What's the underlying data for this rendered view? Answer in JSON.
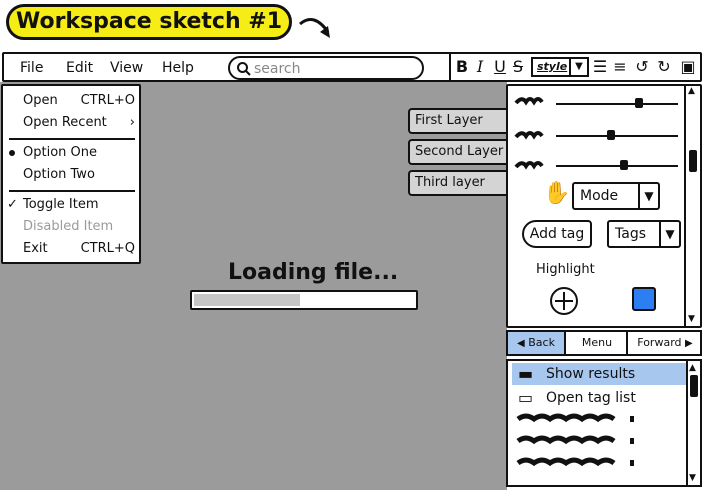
{
  "title": "Workspace sketch #1",
  "menu": {
    "items": [
      "File",
      "Edit",
      "View",
      "Help"
    ],
    "search_placeholder": "search"
  },
  "toolbar": {
    "style_label": "style",
    "icons": [
      "bold-icon",
      "italic-icon",
      "underline-icon",
      "strikethrough-icon",
      "style-dropdown",
      "bulleted-list-icon",
      "numbered-list-icon",
      "undo-icon",
      "redo-icon",
      "image-icon"
    ]
  },
  "file_menu": {
    "items": [
      {
        "label": "Open",
        "shortcut": "CTRL+O"
      },
      {
        "label": "Open Recent",
        "shortcut": "›"
      },
      {
        "label": "Option One",
        "shortcut": ""
      },
      {
        "label": "Option Two",
        "shortcut": ""
      },
      {
        "label": "Toggle Item",
        "shortcut": ""
      },
      {
        "label": "Disabled Item",
        "shortcut": ""
      },
      {
        "label": "Exit",
        "shortcut": "CTRL+Q"
      }
    ]
  },
  "layers": [
    "First Layer",
    "Second Layer",
    "Third layer"
  ],
  "loading": {
    "text": "Loading file...",
    "progress": 0.48
  },
  "panel": {
    "sliders": [
      0.68,
      0.45,
      0.56
    ],
    "mode_label": "Mode",
    "add_tag_label": "Add tag",
    "tags_label": "Tags",
    "highlight_label": "Highlight",
    "highlight_color": "#2c7ef2"
  },
  "nav": {
    "back": "Back",
    "menu": "Menu",
    "forward": "Forward"
  },
  "results": [
    {
      "label": "Show results",
      "selected": true
    },
    {
      "label": "Open tag list",
      "selected": false
    }
  ],
  "colors": {
    "title_fill": "#f6ec16",
    "canvas": "#9b9b9b",
    "selection": "#a7c7ef"
  }
}
